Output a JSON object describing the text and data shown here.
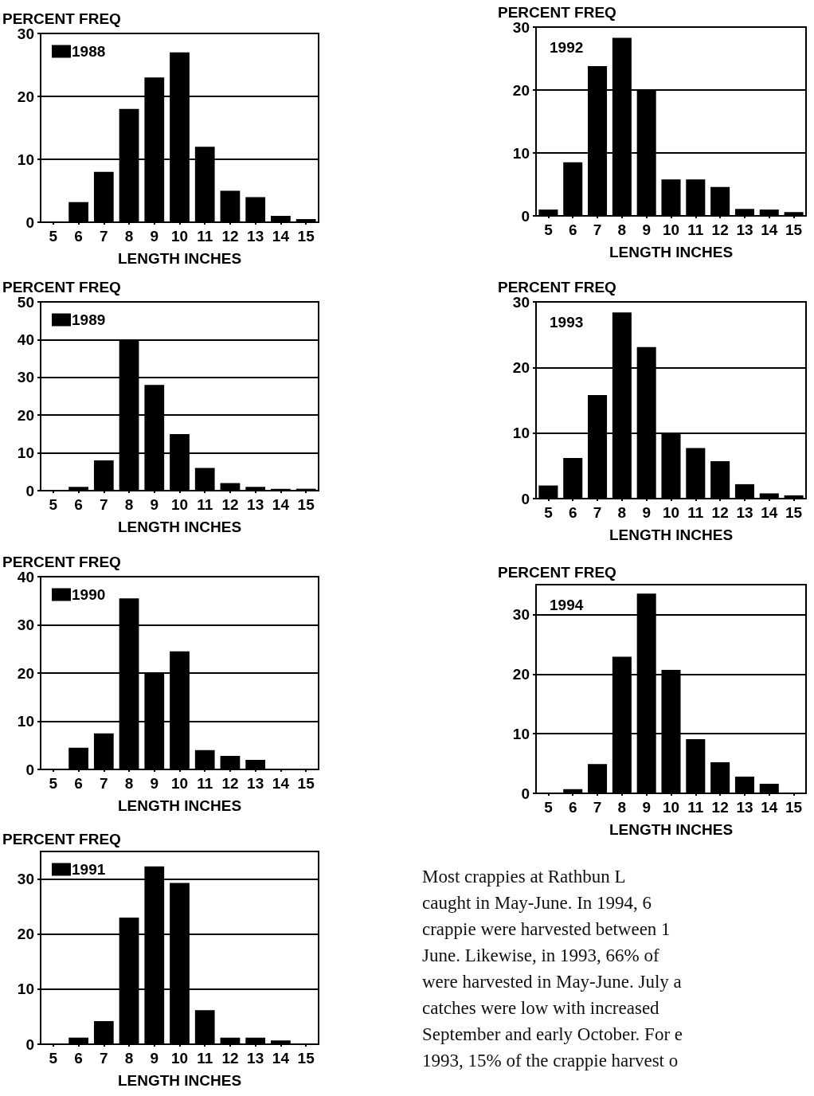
{
  "chart_data": [
    {
      "type": "bar",
      "ylabel": "PERCENT FREQ",
      "xlabel": "LENGTH INCHES",
      "categories": [
        "5",
        "6",
        "7",
        "8",
        "9",
        "10",
        "11",
        "12",
        "13",
        "14",
        "15"
      ],
      "series": [
        {
          "name": "1988",
          "color": "#000000",
          "values": [
            null,
            3.2,
            8,
            18,
            23,
            27,
            12,
            5,
            4,
            1,
            0.5
          ]
        }
      ],
      "ylim": [
        0,
        30
      ],
      "yticks": [
        0,
        10,
        20,
        30
      ],
      "grid": "y",
      "legend": "top left"
    },
    {
      "type": "bar",
      "ylabel": "PERCENT FREQ",
      "xlabel": "LENGTH INCHES",
      "categories": [
        "5",
        "6",
        "7",
        "8",
        "9",
        "10",
        "11",
        "12",
        "13",
        "14",
        "15"
      ],
      "series": [
        {
          "name": "1989",
          "color": "#000000",
          "values": [
            0.2,
            1,
            8,
            40,
            28,
            15,
            6,
            2,
            1,
            0.5,
            0.5
          ]
        }
      ],
      "ylim": [
        0,
        50
      ],
      "yticks": [
        0,
        10,
        20,
        30,
        40,
        50
      ],
      "grid": "y",
      "legend": "top left"
    },
    {
      "type": "bar",
      "ylabel": "PERCENT FREQ",
      "xlabel": "LENGTH INCHES",
      "categories": [
        "5",
        "6",
        "7",
        "8",
        "9",
        "10",
        "11",
        "12",
        "13",
        "14",
        "15"
      ],
      "series": [
        {
          "name": "1990",
          "color": "#000000",
          "values": [
            null,
            4.5,
            7.5,
            35.5,
            20,
            24.5,
            4,
            2.8,
            2,
            null,
            0
          ]
        }
      ],
      "ylim": [
        0,
        40
      ],
      "yticks": [
        0,
        10,
        20,
        30,
        40
      ],
      "grid": "y",
      "legend": "top left"
    },
    {
      "type": "bar",
      "ylabel": "PERCENT FREQ",
      "xlabel": "LENGTH INCHES",
      "categories": [
        "5",
        "6",
        "7",
        "8",
        "9",
        "10",
        "11",
        "12",
        "13",
        "14",
        "15"
      ],
      "series": [
        {
          "name": "1991",
          "color": "#000000",
          "values": [
            0.1,
            1.2,
            4.2,
            23,
            32.3,
            29.3,
            6.2,
            1.2,
            1.2,
            0.7,
            0
          ]
        }
      ],
      "ylim": [
        0,
        35
      ],
      "yticks": [
        0,
        10,
        20,
        30
      ],
      "grid": "y",
      "legend": "top left"
    },
    {
      "type": "bar",
      "ylabel": "PERCENT FREQ",
      "xlabel": "LENGTH INCHES",
      "categories": [
        "5",
        "6",
        "7",
        "8",
        "9",
        "10",
        "11",
        "12",
        "13",
        "14",
        "15"
      ],
      "series": [
        {
          "color": "#000000",
          "values": [
            1,
            8.5,
            23.8,
            28.3,
            20,
            5.8,
            5.8,
            4.6,
            1.1,
            1,
            0.6
          ]
        }
      ],
      "ylim": [
        0,
        30
      ],
      "yticks": [
        0,
        10,
        20,
        30
      ],
      "grid": "y",
      "annotations": [
        "1992"
      ]
    },
    {
      "type": "bar",
      "ylabel": "PERCENT FREQ",
      "xlabel": "LENGTH INCHES",
      "categories": [
        "5",
        "6",
        "7",
        "8",
        "9",
        "10",
        "11",
        "12",
        "13",
        "14",
        "15"
      ],
      "series": [
        {
          "color": "#000000",
          "values": [
            2,
            6.2,
            15.8,
            28.4,
            23.1,
            10,
            7.7,
            5.7,
            2.2,
            0.8,
            0.5
          ]
        }
      ],
      "ylim": [
        0,
        30
      ],
      "yticks": [
        0,
        10,
        20,
        30
      ],
      "grid": "y",
      "annotations": [
        "1993"
      ]
    },
    {
      "type": "bar",
      "ylabel": "PERCENT FREQ",
      "xlabel": "LENGTH INCHES",
      "categories": [
        "5",
        "6",
        "7",
        "8",
        "9",
        "10",
        "11",
        "12",
        "13",
        "14",
        "15"
      ],
      "series": [
        {
          "color": "#000000",
          "values": [
            0,
            0.7,
            4.9,
            22.9,
            33.5,
            20.7,
            9.1,
            5.2,
            2.8,
            1.6,
            0
          ]
        }
      ],
      "ylim": [
        0,
        35
      ],
      "yticks": [
        0,
        10,
        20,
        30
      ],
      "grid": "y",
      "annotations": [
        "1994"
      ]
    },
    {
      "type": "other",
      "annotations": [
        "Most crappies at Rathbun L",
        "caught in May-June.  In 1994, 6",
        "crappie were harvested between 1",
        "June.  Likewise, in 1993, 66% of",
        "were harvested in May-June.  July a",
        "catches were low with increased",
        "September and early October.  For e",
        "1993, 15% of the crappie harvest o"
      ]
    }
  ]
}
